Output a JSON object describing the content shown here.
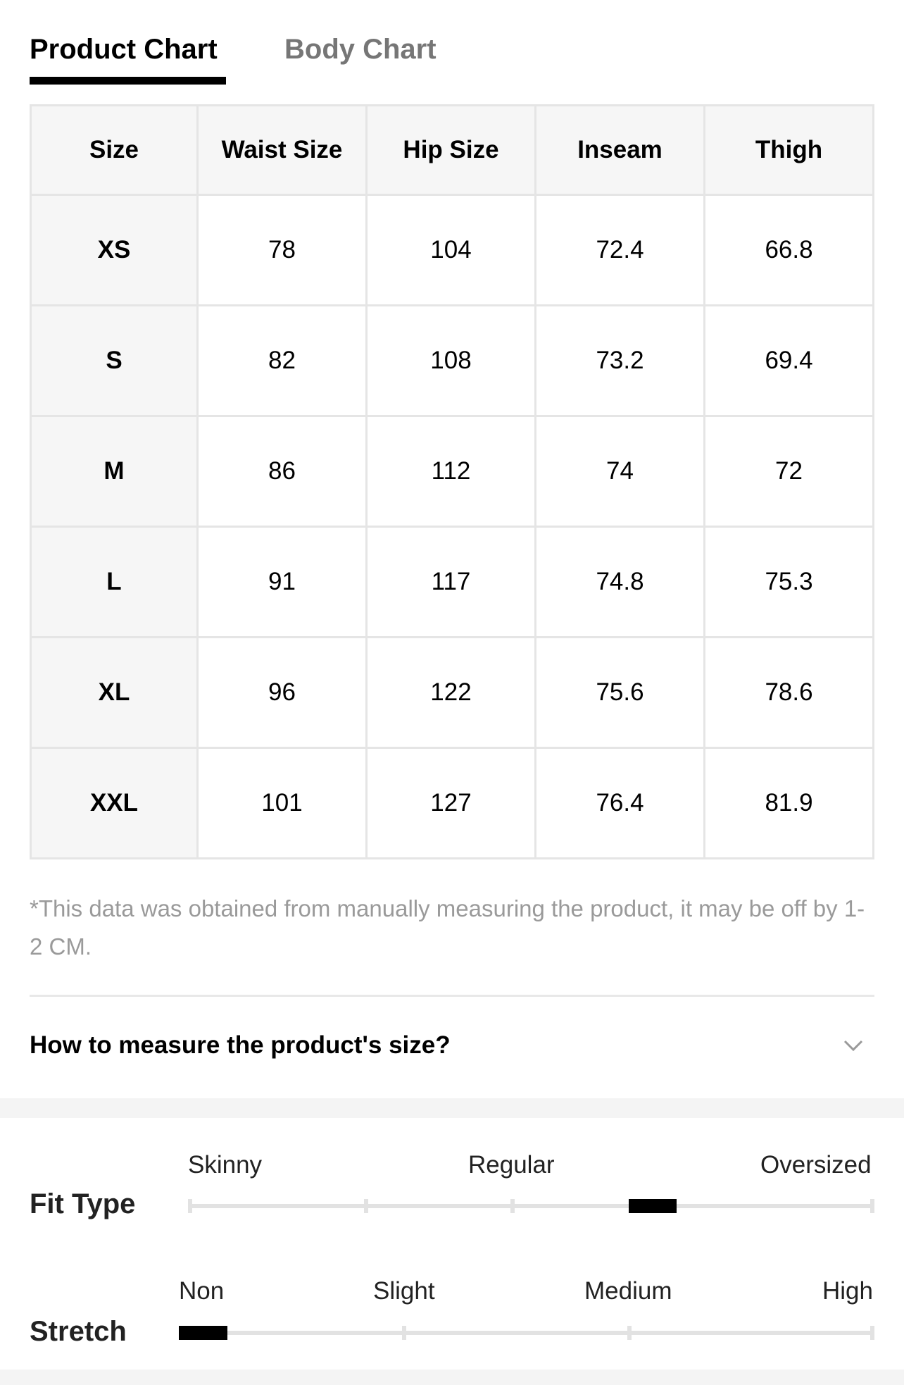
{
  "tabs": {
    "product_chart": "Product Chart",
    "body_chart": "Body Chart"
  },
  "table": {
    "headers": [
      "Size",
      "Waist Size",
      "Hip Size",
      "Inseam",
      "Thigh"
    ],
    "rows": [
      [
        "XS",
        "78",
        "104",
        "72.4",
        "66.8"
      ],
      [
        "S",
        "82",
        "108",
        "73.2",
        "69.4"
      ],
      [
        "M",
        "86",
        "112",
        "74",
        "72"
      ],
      [
        "L",
        "91",
        "117",
        "74.8",
        "75.3"
      ],
      [
        "XL",
        "96",
        "122",
        "75.6",
        "78.6"
      ],
      [
        "XXL",
        "101",
        "127",
        "76.4",
        "81.9"
      ]
    ]
  },
  "note": "*This data was obtained from manually measuring the product, it may be off by 1-2 CM.",
  "accordion": {
    "label": "How to measure the product's size?",
    "icon": "chevron-down-icon"
  },
  "fit": {
    "fit_type": {
      "label": "Fit Type",
      "scale": [
        "Skinny",
        "Regular",
        "Oversized"
      ],
      "level": 0.69
    },
    "stretch": {
      "label": "Stretch",
      "scale": [
        "Non",
        "Slight",
        "Medium",
        "High"
      ],
      "level": 0.0
    }
  }
}
